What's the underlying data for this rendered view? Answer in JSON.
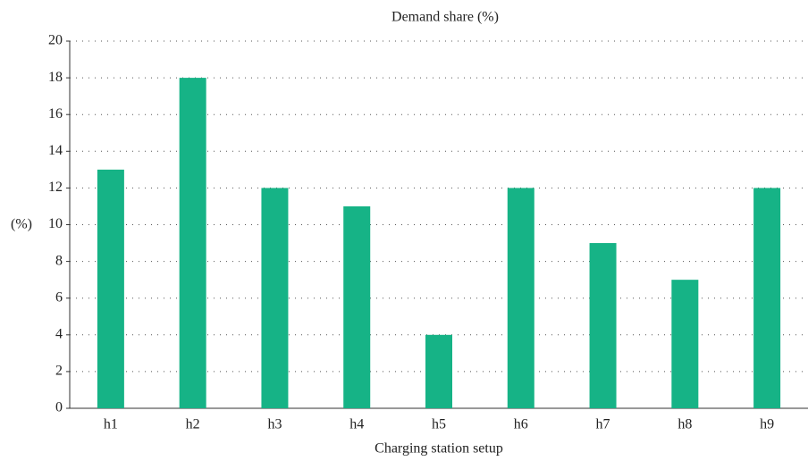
{
  "chart_data": {
    "type": "bar",
    "title": "Demand share (%)",
    "x_label": "Charging station setup",
    "y_label": "(%)",
    "categories": [
      "h1",
      "h2",
      "h3",
      "h4",
      "h5",
      "h6",
      "h7",
      "h8",
      "h9"
    ],
    "values": [
      13,
      18,
      12,
      11,
      4,
      12,
      9,
      7,
      12
    ],
    "color": "#16b386",
    "ylim": [
      0,
      20
    ],
    "yticks": [
      0,
      2,
      4,
      6,
      8,
      10,
      12,
      14,
      16,
      18,
      20
    ],
    "grid": true
  }
}
